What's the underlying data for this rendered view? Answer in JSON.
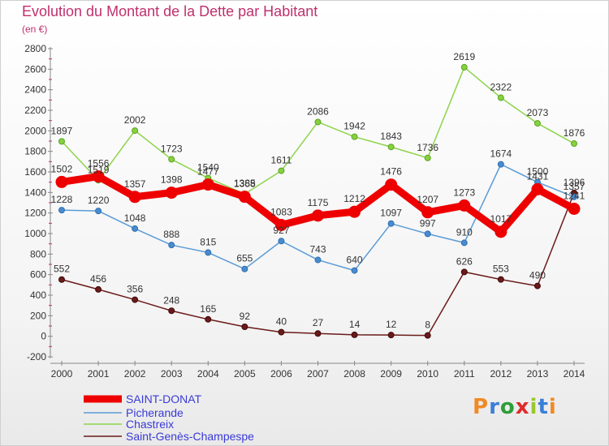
{
  "title": "Evolution du Montant de la Dette par Habitant",
  "unit": "(en €)",
  "brand": {
    "text": "Proxiti"
  },
  "colors": {
    "title": "#c0306e",
    "legend_text": "#3a3ad8",
    "axis": "#888888",
    "red": "#ee0000",
    "blue": "#5b9bd5",
    "green": "#8cd44a",
    "brown": "#6b1a1a"
  },
  "chart_data": {
    "type": "line",
    "title": "Evolution du Montant de la Dette par Habitant",
    "ylabel": "(en €)",
    "xlabel": "",
    "x": [
      "2000",
      "2001",
      "2002",
      "2003",
      "2004",
      "2005",
      "2006",
      "2007",
      "2008",
      "2009",
      "2010",
      "2011",
      "2012",
      "2013",
      "2014"
    ],
    "ylim": [
      -200,
      2800
    ],
    "yticks": [
      -200,
      0,
      200,
      400,
      600,
      800,
      1000,
      1200,
      1400,
      1600,
      1800,
      2000,
      2200,
      2400,
      2600,
      2800
    ],
    "grid": false,
    "legend_position": "bottom-left",
    "series": [
      {
        "name": "SAINT-DONAT",
        "color": "#ee0000",
        "values": [
          1502,
          1556,
          1357,
          1398,
          1477,
          1358,
          1083,
          1175,
          1212,
          1476,
          1207,
          1273,
          1017,
          1431,
          1241
        ],
        "labels": [
          "1502",
          "1556",
          "1357",
          "1398",
          "1477",
          "1358",
          "1083",
          "1175",
          "1212",
          "1476",
          "1207",
          "1273",
          "1017",
          "1431",
          "1241"
        ]
      },
      {
        "name": "Picherande",
        "color": "#5b9bd5",
        "values": [
          1228,
          1220,
          1048,
          888,
          815,
          655,
          927,
          743,
          640,
          1097,
          997,
          910,
          1674,
          1500,
          1357
        ],
        "labels": [
          "1228",
          "1220",
          "1048",
          "888",
          "815",
          "655",
          "927",
          "743",
          "640",
          "1097",
          "997",
          "910",
          "1674",
          "1500",
          "1357"
        ]
      },
      {
        "name": "Chastreix",
        "color": "#8cd44a",
        "values": [
          1897,
          1519,
          2002,
          1723,
          1540,
          1385,
          1611,
          2086,
          1942,
          1843,
          1736,
          2619,
          2322,
          2073,
          1876
        ],
        "labels": [
          "1897",
          "1519",
          "2002",
          "1723",
          "1540",
          "1385",
          "1611",
          "2086",
          "1942",
          "1843",
          "1736",
          "2619",
          "2322",
          "2073",
          "1876"
        ]
      },
      {
        "name": "Saint-Genès-Champespe",
        "color": "#6b1a1a",
        "values": [
          552,
          456,
          356,
          248,
          165,
          92,
          40,
          27,
          14,
          12,
          8,
          626,
          553,
          490,
          1396
        ],
        "labels": [
          "552",
          "456",
          "356",
          "248",
          "165",
          "92",
          "40",
          "27",
          "14",
          "12",
          "8",
          "626",
          "553",
          "490",
          "1396"
        ]
      }
    ]
  }
}
